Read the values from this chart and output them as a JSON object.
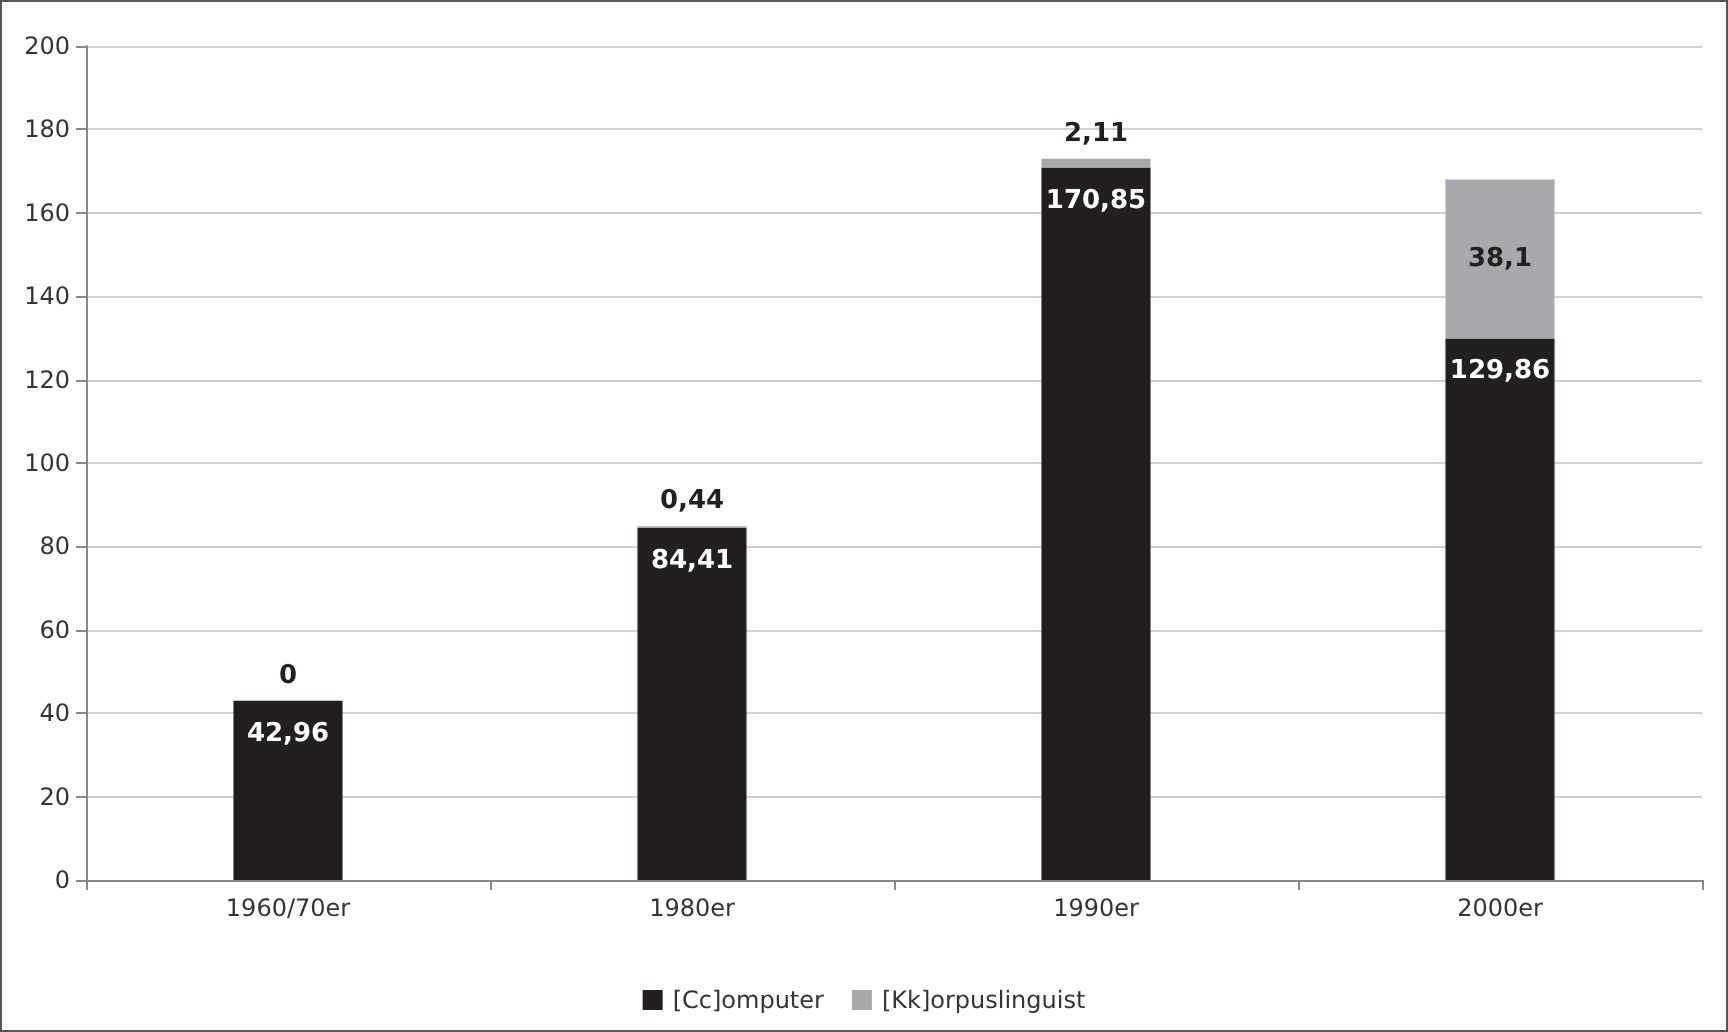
{
  "chart_data": {
    "type": "bar",
    "stacked": true,
    "categories": [
      "1960/70er",
      "1980er",
      "1990er",
      "2000er"
    ],
    "series": [
      {
        "name": "[Cc]omputer",
        "color": "#231f20",
        "values": [
          42.96,
          84.41,
          170.85,
          129.86
        ],
        "value_labels": [
          "42,96",
          "84,41",
          "170,85",
          "129,86"
        ]
      },
      {
        "name": "[Kk]orpuslinguist",
        "color": "#a7a9ac",
        "values": [
          0,
          0.44,
          2.11,
          38.1
        ],
        "value_labels": [
          "0",
          "0,44",
          "2,11",
          "38,1"
        ]
      }
    ],
    "ylim": [
      0,
      200
    ],
    "yticks": [
      0,
      20,
      40,
      60,
      80,
      100,
      120,
      140,
      160,
      180,
      200
    ],
    "grid": "y",
    "legend": "bottom"
  }
}
